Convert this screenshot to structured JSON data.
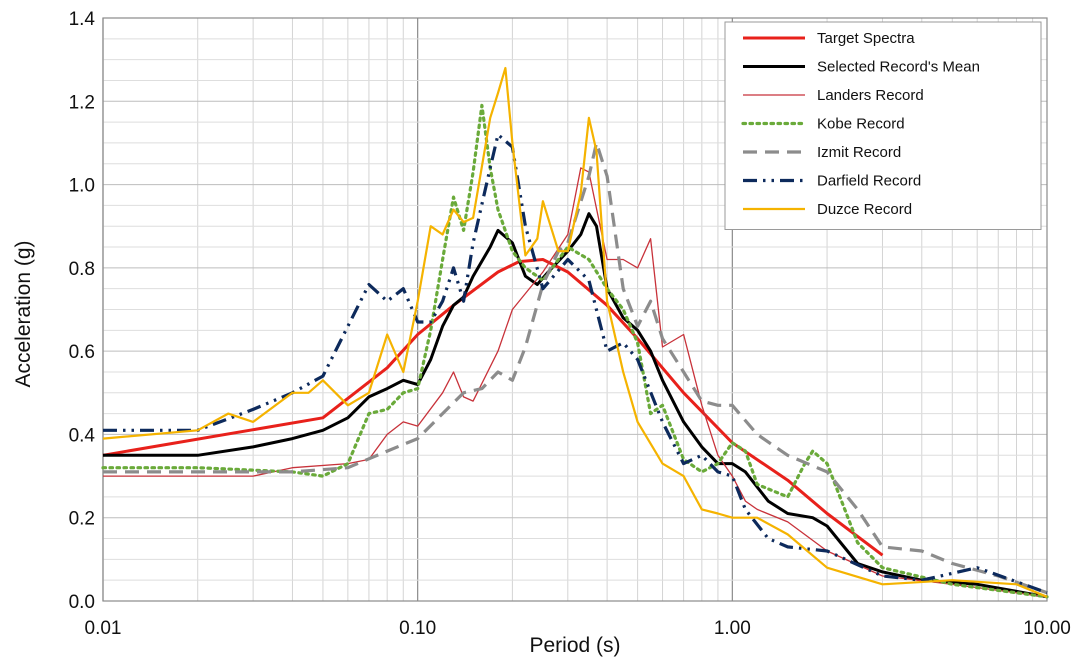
{
  "chart_data": {
    "type": "line",
    "xscale": "log",
    "xlabel": "Period (s)",
    "ylabel": "Acceleration (g)",
    "xlim": [
      0.01,
      10
    ],
    "ylim": [
      0,
      1.4
    ],
    "grid": true,
    "legend_position": "top-right",
    "x_ticks": [
      {
        "value": 0.01,
        "label": "0.01"
      },
      {
        "value": 0.1,
        "label": "0.10"
      },
      {
        "value": 1,
        "label": "1.00"
      },
      {
        "value": 10,
        "label": "10.00"
      }
    ],
    "y_ticks": [
      {
        "value": 0,
        "label": "0.0"
      },
      {
        "value": 0.2,
        "label": "0.2"
      },
      {
        "value": 0.4,
        "label": "0.4"
      },
      {
        "value": 0.6,
        "label": "0.6"
      },
      {
        "value": 0.8,
        "label": "0.8"
      },
      {
        "value": 1.0,
        "label": "1.0"
      },
      {
        "value": 1.2,
        "label": "1.2"
      },
      {
        "value": 1.4,
        "label": "1.4"
      }
    ],
    "series": [
      {
        "name": "Target Spectra",
        "color": "#e8211b",
        "dash": "solid",
        "width": 3,
        "points": [
          [
            0.01,
            0.35
          ],
          [
            0.05,
            0.44
          ],
          [
            0.08,
            0.56
          ],
          [
            0.1,
            0.64
          ],
          [
            0.13,
            0.71
          ],
          [
            0.18,
            0.79
          ],
          [
            0.21,
            0.815
          ],
          [
            0.25,
            0.82
          ],
          [
            0.3,
            0.79
          ],
          [
            0.4,
            0.71
          ],
          [
            0.5,
            0.63
          ],
          [
            0.7,
            0.5
          ],
          [
            1.0,
            0.38
          ],
          [
            1.5,
            0.29
          ],
          [
            2.0,
            0.21
          ],
          [
            3.0,
            0.11
          ]
        ]
      },
      {
        "name": "Selected Record's Mean",
        "color": "#000000",
        "dash": "solid",
        "width": 3,
        "points": [
          [
            0.01,
            0.35
          ],
          [
            0.02,
            0.35
          ],
          [
            0.03,
            0.37
          ],
          [
            0.04,
            0.39
          ],
          [
            0.05,
            0.41
          ],
          [
            0.06,
            0.44
          ],
          [
            0.07,
            0.49
          ],
          [
            0.08,
            0.51
          ],
          [
            0.09,
            0.53
          ],
          [
            0.1,
            0.52
          ],
          [
            0.11,
            0.58
          ],
          [
            0.12,
            0.66
          ],
          [
            0.13,
            0.71
          ],
          [
            0.14,
            0.73
          ],
          [
            0.15,
            0.78
          ],
          [
            0.17,
            0.85
          ],
          [
            0.18,
            0.89
          ],
          [
            0.2,
            0.86
          ],
          [
            0.22,
            0.78
          ],
          [
            0.24,
            0.76
          ],
          [
            0.26,
            0.79
          ],
          [
            0.3,
            0.84
          ],
          [
            0.33,
            0.88
          ],
          [
            0.35,
            0.93
          ],
          [
            0.37,
            0.9
          ],
          [
            0.4,
            0.75
          ],
          [
            0.45,
            0.68
          ],
          [
            0.5,
            0.65
          ],
          [
            0.55,
            0.6
          ],
          [
            0.6,
            0.53
          ],
          [
            0.7,
            0.43
          ],
          [
            0.8,
            0.37
          ],
          [
            0.9,
            0.33
          ],
          [
            1.0,
            0.33
          ],
          [
            1.1,
            0.31
          ],
          [
            1.3,
            0.24
          ],
          [
            1.5,
            0.21
          ],
          [
            1.8,
            0.2
          ],
          [
            2.0,
            0.18
          ],
          [
            2.5,
            0.09
          ],
          [
            3.0,
            0.07
          ],
          [
            4.0,
            0.05
          ],
          [
            6.0,
            0.04
          ],
          [
            10.0,
            0.01
          ]
        ]
      },
      {
        "name": "Landers Record",
        "color": "#c8323a",
        "dash": "solid",
        "width": 1.3,
        "points": [
          [
            0.01,
            0.3
          ],
          [
            0.02,
            0.3
          ],
          [
            0.03,
            0.3
          ],
          [
            0.04,
            0.32
          ],
          [
            0.06,
            0.33
          ],
          [
            0.07,
            0.34
          ],
          [
            0.08,
            0.4
          ],
          [
            0.09,
            0.43
          ],
          [
            0.1,
            0.42
          ],
          [
            0.12,
            0.5
          ],
          [
            0.13,
            0.55
          ],
          [
            0.14,
            0.49
          ],
          [
            0.15,
            0.48
          ],
          [
            0.18,
            0.6
          ],
          [
            0.2,
            0.7
          ],
          [
            0.25,
            0.79
          ],
          [
            0.3,
            0.88
          ],
          [
            0.33,
            1.04
          ],
          [
            0.35,
            1.03
          ],
          [
            0.4,
            0.82
          ],
          [
            0.45,
            0.82
          ],
          [
            0.5,
            0.8
          ],
          [
            0.55,
            0.87
          ],
          [
            0.6,
            0.61
          ],
          [
            0.7,
            0.64
          ],
          [
            0.8,
            0.47
          ],
          [
            0.9,
            0.35
          ],
          [
            1.0,
            0.3
          ],
          [
            1.1,
            0.24
          ],
          [
            1.2,
            0.22
          ],
          [
            1.5,
            0.19
          ],
          [
            2.0,
            0.12
          ],
          [
            3.0,
            0.06
          ],
          [
            5.0,
            0.04
          ],
          [
            10.0,
            0.01
          ]
        ]
      },
      {
        "name": "Kobe Record",
        "color": "#6aaa3a",
        "dash": "dot",
        "width": 3.2,
        "points": [
          [
            0.01,
            0.32
          ],
          [
            0.02,
            0.32
          ],
          [
            0.04,
            0.31
          ],
          [
            0.05,
            0.3
          ],
          [
            0.06,
            0.33
          ],
          [
            0.07,
            0.45
          ],
          [
            0.08,
            0.46
          ],
          [
            0.09,
            0.5
          ],
          [
            0.1,
            0.51
          ],
          [
            0.11,
            0.65
          ],
          [
            0.12,
            0.82
          ],
          [
            0.13,
            0.97
          ],
          [
            0.14,
            0.89
          ],
          [
            0.15,
            1.03
          ],
          [
            0.16,
            1.19
          ],
          [
            0.17,
            1.04
          ],
          [
            0.18,
            0.94
          ],
          [
            0.2,
            0.84
          ],
          [
            0.22,
            0.8
          ],
          [
            0.25,
            0.77
          ],
          [
            0.3,
            0.85
          ],
          [
            0.35,
            0.82
          ],
          [
            0.4,
            0.75
          ],
          [
            0.45,
            0.7
          ],
          [
            0.5,
            0.62
          ],
          [
            0.55,
            0.45
          ],
          [
            0.6,
            0.47
          ],
          [
            0.7,
            0.34
          ],
          [
            0.8,
            0.31
          ],
          [
            0.9,
            0.33
          ],
          [
            1.0,
            0.38
          ],
          [
            1.1,
            0.36
          ],
          [
            1.2,
            0.28
          ],
          [
            1.5,
            0.25
          ],
          [
            1.7,
            0.33
          ],
          [
            1.8,
            0.36
          ],
          [
            2.0,
            0.33
          ],
          [
            2.5,
            0.14
          ],
          [
            3.0,
            0.08
          ],
          [
            5.0,
            0.04
          ],
          [
            10.0,
            0.01
          ]
        ]
      },
      {
        "name": "Izmit Record",
        "color": "#8c8c8c",
        "dash": "dash",
        "width": 3.2,
        "points": [
          [
            0.01,
            0.31
          ],
          [
            0.02,
            0.31
          ],
          [
            0.04,
            0.31
          ],
          [
            0.06,
            0.32
          ],
          [
            0.08,
            0.36
          ],
          [
            0.1,
            0.39
          ],
          [
            0.12,
            0.45
          ],
          [
            0.14,
            0.5
          ],
          [
            0.16,
            0.51
          ],
          [
            0.18,
            0.55
          ],
          [
            0.2,
            0.53
          ],
          [
            0.22,
            0.61
          ],
          [
            0.25,
            0.76
          ],
          [
            0.28,
            0.84
          ],
          [
            0.3,
            0.86
          ],
          [
            0.35,
            1.02
          ],
          [
            0.37,
            1.1
          ],
          [
            0.4,
            1.02
          ],
          [
            0.45,
            0.75
          ],
          [
            0.5,
            0.66
          ],
          [
            0.55,
            0.72
          ],
          [
            0.6,
            0.63
          ],
          [
            0.7,
            0.55
          ],
          [
            0.8,
            0.48
          ],
          [
            0.9,
            0.47
          ],
          [
            1.0,
            0.47
          ],
          [
            1.2,
            0.4
          ],
          [
            1.5,
            0.35
          ],
          [
            2.0,
            0.31
          ],
          [
            2.5,
            0.22
          ],
          [
            3.0,
            0.13
          ],
          [
            4.0,
            0.12
          ],
          [
            5.0,
            0.09
          ],
          [
            7.0,
            0.06
          ],
          [
            10.0,
            0.02
          ]
        ]
      },
      {
        "name": "Darfield Record",
        "color": "#0d2a5c",
        "dash": "dashdotdot",
        "width": 3.2,
        "points": [
          [
            0.01,
            0.41
          ],
          [
            0.02,
            0.41
          ],
          [
            0.03,
            0.46
          ],
          [
            0.04,
            0.5
          ],
          [
            0.05,
            0.54
          ],
          [
            0.06,
            0.66
          ],
          [
            0.07,
            0.76
          ],
          [
            0.08,
            0.72
          ],
          [
            0.09,
            0.75
          ],
          [
            0.1,
            0.67
          ],
          [
            0.11,
            0.67
          ],
          [
            0.12,
            0.72
          ],
          [
            0.13,
            0.8
          ],
          [
            0.14,
            0.72
          ],
          [
            0.15,
            0.86
          ],
          [
            0.17,
            1.04
          ],
          [
            0.18,
            1.12
          ],
          [
            0.2,
            1.09
          ],
          [
            0.22,
            0.9
          ],
          [
            0.25,
            0.75
          ],
          [
            0.3,
            0.82
          ],
          [
            0.35,
            0.77
          ],
          [
            0.4,
            0.6
          ],
          [
            0.45,
            0.62
          ],
          [
            0.5,
            0.58
          ],
          [
            0.6,
            0.43
          ],
          [
            0.7,
            0.33
          ],
          [
            0.8,
            0.35
          ],
          [
            0.9,
            0.31
          ],
          [
            1.0,
            0.3
          ],
          [
            1.1,
            0.22
          ],
          [
            1.3,
            0.15
          ],
          [
            1.5,
            0.13
          ],
          [
            2.0,
            0.12
          ],
          [
            3.0,
            0.06
          ],
          [
            4.0,
            0.05
          ],
          [
            6.0,
            0.08
          ],
          [
            10.0,
            0.02
          ]
        ]
      },
      {
        "name": "Duzce Record",
        "color": "#f5b300",
        "dash": "solid",
        "width": 2.2,
        "points": [
          [
            0.01,
            0.39
          ],
          [
            0.02,
            0.41
          ],
          [
            0.025,
            0.45
          ],
          [
            0.03,
            0.43
          ],
          [
            0.04,
            0.5
          ],
          [
            0.045,
            0.5
          ],
          [
            0.05,
            0.53
          ],
          [
            0.06,
            0.47
          ],
          [
            0.07,
            0.5
          ],
          [
            0.08,
            0.64
          ],
          [
            0.09,
            0.55
          ],
          [
            0.1,
            0.72
          ],
          [
            0.11,
            0.9
          ],
          [
            0.12,
            0.88
          ],
          [
            0.13,
            0.94
          ],
          [
            0.14,
            0.91
          ],
          [
            0.15,
            0.92
          ],
          [
            0.17,
            1.16
          ],
          [
            0.18,
            1.22
          ],
          [
            0.19,
            1.28
          ],
          [
            0.2,
            1.1
          ],
          [
            0.22,
            0.83
          ],
          [
            0.24,
            0.87
          ],
          [
            0.25,
            0.96
          ],
          [
            0.28,
            0.84
          ],
          [
            0.3,
            0.84
          ],
          [
            0.33,
            0.98
          ],
          [
            0.35,
            1.16
          ],
          [
            0.37,
            1.08
          ],
          [
            0.4,
            0.72
          ],
          [
            0.45,
            0.55
          ],
          [
            0.5,
            0.43
          ],
          [
            0.6,
            0.33
          ],
          [
            0.7,
            0.3
          ],
          [
            0.8,
            0.22
          ],
          [
            0.9,
            0.21
          ],
          [
            1.0,
            0.2
          ],
          [
            1.2,
            0.2
          ],
          [
            1.5,
            0.16
          ],
          [
            2.0,
            0.08
          ],
          [
            3.0,
            0.04
          ],
          [
            5.0,
            0.05
          ],
          [
            8.0,
            0.04
          ],
          [
            10.0,
            0.01
          ]
        ]
      }
    ]
  }
}
